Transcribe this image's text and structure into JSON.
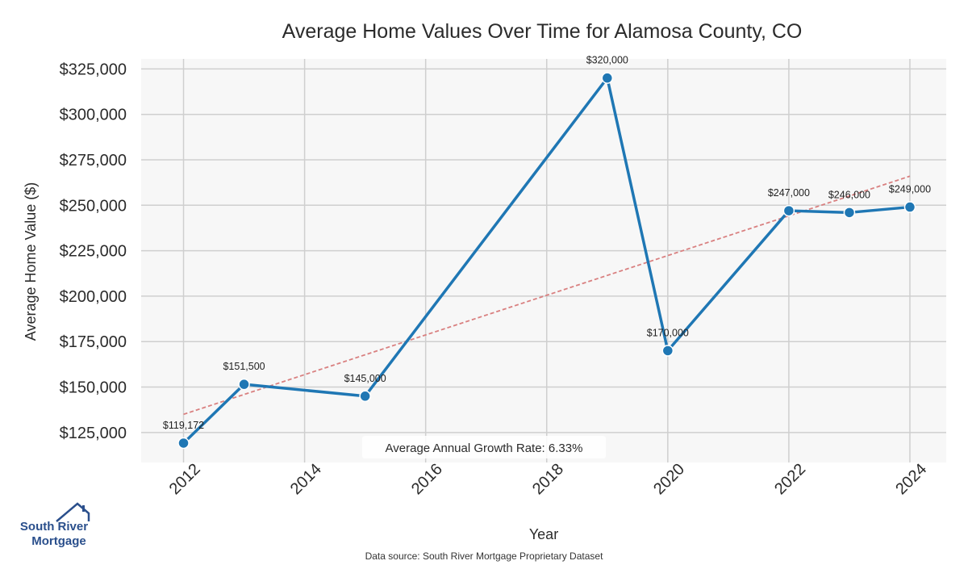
{
  "chart_data": {
    "type": "line",
    "title": "Average Home Values Over Time for Alamosa County, CO",
    "xlabel": "Year",
    "ylabel": "Average Home Value ($)",
    "x": [
      2012,
      2013,
      2015,
      2019,
      2020,
      2022,
      2023,
      2024
    ],
    "series": [
      {
        "values": [
          119172,
          151500,
          145000,
          320000,
          170000,
          247000,
          246000,
          249000
        ],
        "color": "#1f77b4"
      }
    ],
    "data_labels": [
      "$119,172",
      "$151,500",
      "$145,000",
      "$320,000",
      "$170,000",
      "$247,000",
      "$246,000",
      "$249,000"
    ],
    "trendline": {
      "start": [
        2012,
        135000
      ],
      "end": [
        2024,
        266000
      ],
      "color": "#d98080",
      "style": "dashed"
    },
    "xticks": [
      2012,
      2014,
      2016,
      2018,
      2020,
      2022,
      2024
    ],
    "xtick_labels": [
      "2012",
      "2014",
      "2016",
      "2018",
      "2020",
      "2022",
      "2024"
    ],
    "yticks": [
      125000,
      150000,
      175000,
      200000,
      225000,
      250000,
      275000,
      300000,
      325000
    ],
    "ytick_labels": [
      "$125,000",
      "$150,000",
      "$175,000",
      "$200,000",
      "$225,000",
      "$250,000",
      "$275,000",
      "$300,000",
      "$325,000"
    ],
    "xlim": [
      2011.3,
      2024.6
    ],
    "ylim": [
      108500,
      330500
    ],
    "grid": true,
    "plot_background": "#f7f7f7",
    "grid_color": "#cfcfcf",
    "annotation": "Average Annual Growth Rate: 6.33%"
  },
  "footer": {
    "source": "Data source: South River Mortgage Proprietary Dataset"
  },
  "logo": {
    "line1": "South River",
    "line2": "Mortgage",
    "icon": "house-roof-icon",
    "color": "#2a4f8c"
  }
}
